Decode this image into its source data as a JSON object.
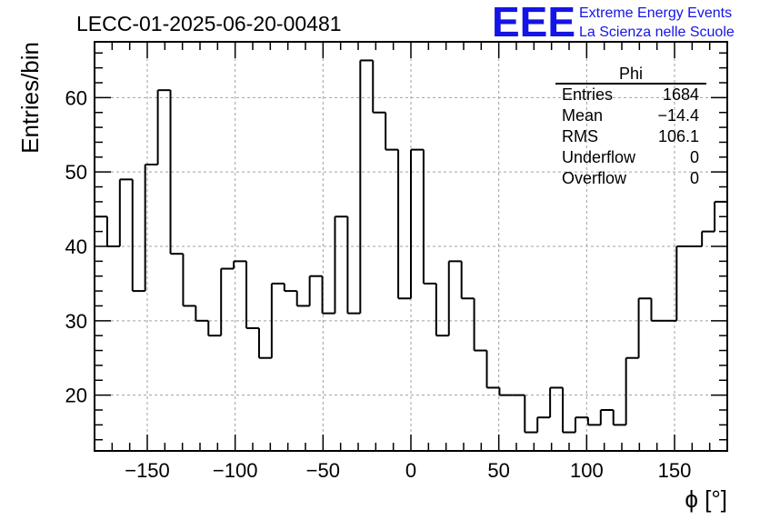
{
  "chart_data": {
    "type": "bar",
    "histogram": true,
    "title": "LECC-01-2025-06-20-00481",
    "xlabel": "ϕ [°]",
    "ylabel": "Entries/bin",
    "xlim": [
      -180,
      180
    ],
    "ylim": [
      12.5,
      67.5
    ],
    "grid": true,
    "bin_width": 7.2,
    "bin_edges_start": -180,
    "values": [
      44,
      40,
      49,
      34,
      51,
      61,
      39,
      32,
      30,
      28,
      37,
      38,
      29,
      25,
      35,
      34,
      32,
      36,
      31,
      44,
      31,
      65,
      58,
      53,
      33,
      53,
      35,
      28,
      38,
      33,
      26,
      21,
      20,
      20,
      15,
      17,
      21,
      15,
      17,
      16,
      18,
      16,
      25,
      33,
      30,
      30,
      40,
      40,
      42,
      46
    ],
    "x_ticks": [
      -150,
      -100,
      -50,
      0,
      50,
      100,
      150
    ],
    "x_tick_labels": [
      "−150",
      "−100",
      "−50",
      "0",
      "50",
      "100",
      "150"
    ],
    "y_ticks": [
      20,
      30,
      40,
      50,
      60
    ],
    "y_tick_labels": [
      "20",
      "30",
      "40",
      "50",
      "60"
    ],
    "stats_box": {
      "name": "Phi",
      "rows": [
        {
          "label": "Entries",
          "value": "1684"
        },
        {
          "label": "Mean",
          "value": "−14.4"
        },
        {
          "label": "RMS",
          "value": "106.1"
        },
        {
          "label": "Underflow",
          "value": "0"
        },
        {
          "label": "Overflow",
          "value": "0"
        }
      ]
    }
  },
  "logo": {
    "mark": "EEE",
    "line1": "Extreme Energy Events",
    "line2": "La Scienza nelle Scuole",
    "color": "#1414e6"
  },
  "colors": {
    "line": "#000000",
    "grid": "#a0a0a0"
  }
}
